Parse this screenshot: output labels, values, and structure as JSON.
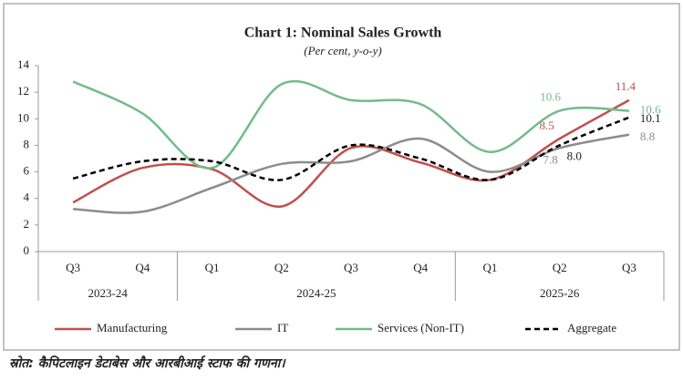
{
  "chart_data": {
    "type": "line",
    "title": "Chart 1: Nominal Sales Growth",
    "subtitle": "(Per cent, y-o-y)",
    "groups": [
      {
        "label": "2023-24",
        "categories": [
          "Q3",
          "Q4"
        ]
      },
      {
        "label": "2024-25",
        "categories": [
          "Q1",
          "Q2",
          "Q3",
          "Q4"
        ]
      },
      {
        "label": "2025-26",
        "categories": [
          "Q1",
          "Q2",
          "Q3"
        ]
      }
    ],
    "series": [
      {
        "name": "Manufacturing",
        "color": "#c0504d",
        "dash": false,
        "values": [
          3.7,
          6.3,
          6.2,
          3.4,
          7.8,
          6.7,
          5.4,
          8.5,
          11.4
        ],
        "value_labels": [
          null,
          null,
          null,
          null,
          null,
          null,
          null,
          "8.5",
          "11.4"
        ]
      },
      {
        "name": "IT",
        "color": "#8c8c8c",
        "dash": false,
        "values": [
          3.2,
          3.0,
          4.8,
          6.6,
          6.8,
          8.5,
          6.0,
          7.8,
          8.8
        ],
        "value_labels": [
          null,
          null,
          null,
          null,
          null,
          null,
          null,
          "7.8",
          "8.8"
        ]
      },
      {
        "name": "Services (Non-IT)",
        "color": "#72bb8b",
        "dash": false,
        "values": [
          12.8,
          10.4,
          6.3,
          12.6,
          11.4,
          11.1,
          7.5,
          10.6,
          10.6
        ],
        "value_labels": [
          null,
          null,
          null,
          null,
          null,
          null,
          null,
          "10.6",
          "10.6"
        ]
      },
      {
        "name": "Aggregate",
        "color": "#000000",
        "dash": true,
        "values": [
          5.5,
          6.8,
          6.8,
          5.4,
          8.0,
          7.0,
          5.4,
          8.0,
          10.1
        ],
        "value_labels": [
          null,
          null,
          null,
          null,
          null,
          null,
          null,
          "8.0",
          "10.1"
        ]
      }
    ],
    "ylim": [
      0,
      14
    ],
    "yticks": [
      0,
      2,
      4,
      6,
      8,
      10,
      12,
      14
    ],
    "grid": false,
    "legend": "bottom"
  },
  "source": "स्रोत: कैपिटलाइन डेटाबेस और आरबीआई स्टाफ की गणना।"
}
